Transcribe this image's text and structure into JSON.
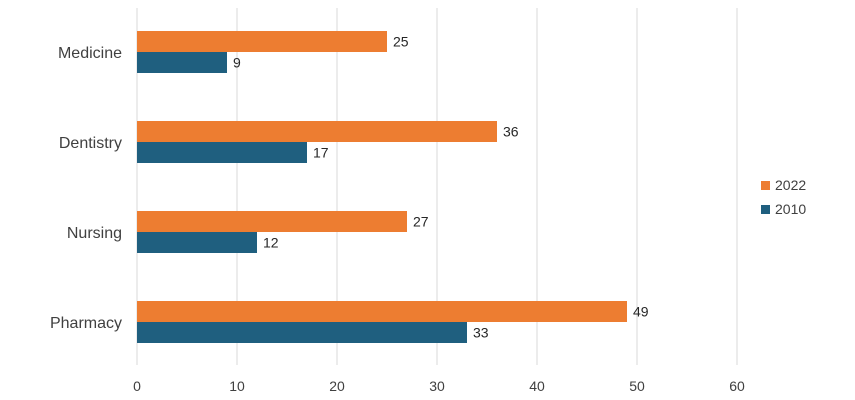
{
  "chart_data": {
    "type": "bar",
    "orientation": "horizontal",
    "categories": [
      "Medicine",
      "Dentistry",
      "Nursing",
      "Pharmacy"
    ],
    "series": [
      {
        "name": "2022",
        "color": "#ED7D31",
        "values": [
          25,
          36,
          27,
          49
        ]
      },
      {
        "name": "2010",
        "color": "#1F5F7F",
        "values": [
          9,
          17,
          12,
          33
        ]
      }
    ],
    "xlim": [
      0,
      60
    ],
    "x_ticks": [
      0,
      10,
      20,
      30,
      40,
      50,
      60
    ],
    "grid": true,
    "legend_position": "right",
    "data_labels": true
  }
}
